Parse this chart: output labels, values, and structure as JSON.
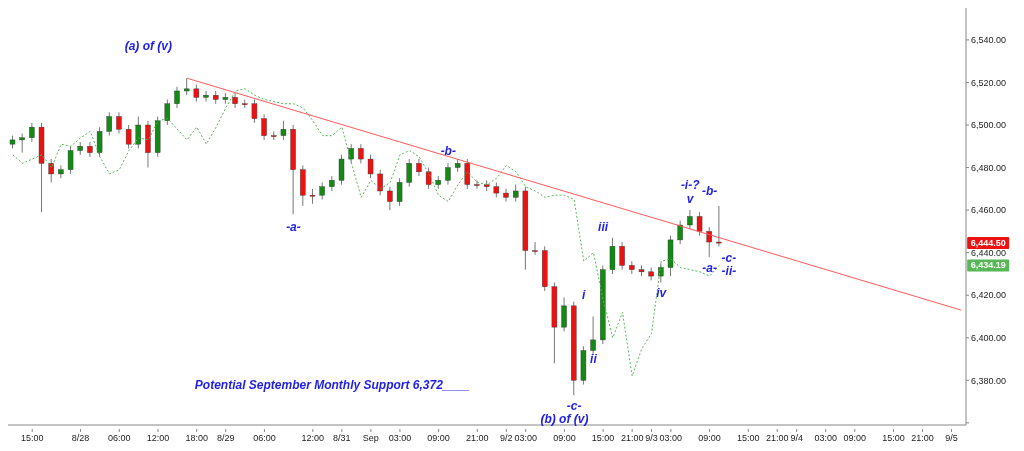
{
  "chart_data": {
    "type": "candlestick",
    "categories": [
      null,
      null,
      "15:00",
      null,
      null,
      null,
      null,
      "8/28",
      null,
      null,
      null,
      "06:00",
      null,
      null,
      null,
      "12:00",
      null,
      null,
      null,
      "18:00",
      null,
      null,
      "8/29",
      null,
      null,
      null,
      "06:00",
      null,
      null,
      null,
      null,
      "12:00",
      null,
      null,
      "8/31",
      null,
      null,
      "Sep",
      null,
      null,
      "03:00",
      null,
      null,
      null,
      "09:00",
      null,
      null,
      null,
      "21:00",
      null,
      null,
      "9/2",
      null,
      "03:00",
      null,
      null,
      null,
      "09:00",
      null,
      null,
      null,
      "15:00",
      null,
      null,
      "21:00",
      null,
      "9/3",
      null,
      "03:00",
      null,
      null,
      null,
      "09:00",
      null,
      null,
      null,
      "15:00",
      null,
      null,
      "21:00",
      null,
      "9/4",
      null,
      null,
      "03:00",
      null,
      null,
      "09:00",
      null,
      null,
      null,
      "15:00",
      null,
      null,
      "21:00",
      null,
      null,
      "9/5",
      null
    ],
    "ohlc": [
      [
        6491,
        6495,
        6489,
        6493
      ],
      [
        6493,
        6496,
        6487,
        6494
      ],
      [
        6494,
        6501,
        6492,
        6499
      ],
      [
        6499,
        6501,
        6459,
        6482
      ],
      [
        6482,
        6484,
        6473,
        6477
      ],
      [
        6477,
        6481,
        6475,
        6479
      ],
      [
        6479,
        6490,
        6477,
        6488
      ],
      [
        6488,
        6492,
        6486,
        6490
      ],
      [
        6490,
        6492,
        6485,
        6487
      ],
      [
        6487,
        6499,
        6485,
        6497
      ],
      [
        6497,
        6506,
        6495,
        6504
      ],
      [
        6504,
        6506,
        6496,
        6498
      ],
      [
        6498,
        6500,
        6489,
        6491
      ],
      [
        6491,
        6504,
        6489,
        6500
      ],
      [
        6500,
        6502,
        6480,
        6487
      ],
      [
        6487,
        6504,
        6485,
        6502
      ],
      [
        6502,
        6512,
        6500,
        6510
      ],
      [
        6510,
        6518,
        6508,
        6516
      ],
      [
        6516,
        6522,
        6514,
        6517
      ],
      [
        6517,
        6519,
        6511,
        6513
      ],
      [
        6513,
        6516,
        6511,
        6514
      ],
      [
        6514,
        6516,
        6510,
        6512
      ],
      [
        6512,
        6515,
        6510,
        6513
      ],
      [
        6513,
        6515,
        6508,
        6510
      ],
      [
        6510,
        6512,
        6508,
        6510
      ],
      [
        6510,
        6512,
        6501,
        6503
      ],
      [
        6503,
        6505,
        6493,
        6495
      ],
      [
        6495,
        6497,
        6493,
        6495
      ],
      [
        6495,
        6502,
        6493,
        6498
      ],
      [
        6498,
        6500,
        6458,
        6479
      ],
      [
        6479,
        6481,
        6462,
        6467
      ],
      [
        6467,
        6470,
        6463,
        6467
      ],
      [
        6467,
        6473,
        6465,
        6471
      ],
      [
        6471,
        6476,
        6469,
        6474
      ],
      [
        6474,
        6486,
        6472,
        6484
      ],
      [
        6484,
        6491,
        6482,
        6489
      ],
      [
        6489,
        6491,
        6482,
        6484
      ],
      [
        6484,
        6486,
        6475,
        6477
      ],
      [
        6477,
        6479,
        6467,
        6469
      ],
      [
        6469,
        6471,
        6460,
        6464
      ],
      [
        6464,
        6475,
        6462,
        6473
      ],
      [
        6473,
        6484,
        6471,
        6482
      ],
      [
        6482,
        6484,
        6476,
        6478
      ],
      [
        6478,
        6480,
        6470,
        6472
      ],
      [
        6472,
        6476,
        6470,
        6474
      ],
      [
        6474,
        6482,
        6472,
        6480
      ],
      [
        6480,
        6484,
        6478,
        6482
      ],
      [
        6482,
        6484,
        6470,
        6472
      ],
      [
        6472,
        6474,
        6470,
        6472
      ],
      [
        6472,
        6474,
        6469,
        6471
      ],
      [
        6471,
        6473,
        6466,
        6468
      ],
      [
        6468,
        6470,
        6464,
        6466
      ],
      [
        6466,
        6472,
        6464,
        6469
      ],
      [
        6469,
        6471,
        6432,
        6441
      ],
      [
        6441,
        6445,
        6439,
        6441
      ],
      [
        6441,
        6443,
        6422,
        6424
      ],
      [
        6424,
        6426,
        6388,
        6405
      ],
      [
        6405,
        6419,
        6403,
        6415
      ],
      [
        6415,
        6417,
        6373,
        6380
      ],
      [
        6380,
        6396,
        6378,
        6394
      ],
      [
        6394,
        6410,
        6392,
        6399
      ],
      [
        6399,
        6434,
        6397,
        6432
      ],
      [
        6432,
        6447,
        6430,
        6443
      ],
      [
        6443,
        6445,
        6432,
        6434
      ],
      [
        6434,
        6436,
        6430,
        6432
      ],
      [
        6432,
        6434,
        6429,
        6431
      ],
      [
        6431,
        6433,
        6427,
        6429
      ],
      [
        6429,
        6435,
        6426,
        6433
      ],
      [
        6433,
        6448,
        6429,
        6446
      ],
      [
        6446,
        6455,
        6444,
        6453
      ],
      [
        6453,
        6460,
        6451,
        6457
      ],
      [
        6457,
        6459,
        6448,
        6450
      ],
      [
        6450,
        6452,
        6438,
        6445
      ],
      [
        6445,
        6462,
        6443,
        6444.5
      ],
      null,
      null,
      null,
      null,
      null,
      null,
      null,
      null,
      null,
      null,
      null,
      null,
      null,
      null,
      null,
      null,
      null,
      null,
      null,
      null,
      null,
      null,
      null,
      null,
      null
    ],
    "colors": [
      "#138a13",
      "#138a13",
      "#138a13",
      "#ee1111",
      "#ee1111",
      "#138a13",
      "#138a13",
      "#138a13",
      "#ee1111",
      "#138a13",
      "#138a13",
      "#ee1111",
      "#ee1111",
      "#138a13",
      "#ee1111",
      "#138a13",
      "#138a13",
      "#138a13",
      "#138a13",
      "#ee1111",
      "#138a13",
      "#ee1111",
      "#138a13",
      "#ee1111",
      "#ee1111",
      "#ee1111",
      "#ee1111",
      "#ee1111",
      "#138a13",
      "#ee1111",
      "#ee1111",
      "#ee1111",
      "#138a13",
      "#138a13",
      "#138a13",
      "#138a13",
      "#ee1111",
      "#ee1111",
      "#ee1111",
      "#ee1111",
      "#138a13",
      "#138a13",
      "#ee1111",
      "#ee1111",
      "#138a13",
      "#138a13",
      "#138a13",
      "#ee1111",
      "#ee1111",
      "#ee1111",
      "#ee1111",
      "#ee1111",
      "#138a13",
      "#ee1111",
      "#ee1111",
      "#ee1111",
      "#ee1111",
      "#138a13",
      "#ee1111",
      "#138a13",
      "#138a13",
      "#138a13",
      "#138a13",
      "#ee1111",
      "#ee1111",
      "#ee1111",
      "#ee1111",
      "#138a13",
      "#138a13",
      "#138a13",
      "#138a13",
      "#ee1111",
      "#ee1111",
      "#ee1111",
      null,
      null,
      null,
      null,
      null,
      null,
      null,
      null,
      null,
      null,
      null,
      null,
      null,
      null,
      null,
      null,
      null,
      null,
      null,
      null,
      null,
      null,
      null,
      null,
      null
    ],
    "series": [
      {
        "type": "line",
        "color": "#55b855",
        "line_style": "dotted",
        "values": [
          6486,
          6482,
          6484,
          6486,
          6480,
          6491,
          6490,
          6494,
          6497,
          6485,
          6477,
          6479,
          6488,
          6494,
          6493,
          6502,
          6503,
          6498,
          6493,
          6499,
          6491,
          6499,
          6508,
          6516,
          6517,
          6514,
          6512,
          6511,
          6510,
          6510,
          6508,
          6502,
          6495,
          6495,
          6499,
          6482,
          6466,
          6474,
          6470,
          6473,
          6486,
          6488,
          6485,
          6477,
          6467,
          6464,
          6472,
          6478,
          6473,
          6472,
          6475,
          6481,
          6478,
          6471,
          6469,
          6466,
          6467,
          6467,
          6465,
          6436,
          6440,
          6418,
          6400,
          6412,
          6382,
          6395,
          6402,
          6436,
          6437,
          6433,
          6432,
          6431,
          6429,
          6434,
          null,
          null,
          null,
          null,
          null,
          null,
          null,
          null,
          null,
          null,
          null,
          null,
          null,
          null,
          null,
          null,
          null,
          null,
          null,
          null,
          null,
          null,
          null,
          null,
          null
        ]
      },
      {
        "type": "line",
        "color": "#ff5a5a",
        "line_style": "solid",
        "values": [
          null,
          null,
          null,
          null,
          null,
          null,
          null,
          null,
          null,
          null,
          null,
          null,
          null,
          null,
          null,
          null,
          null,
          null,
          6522,
          null,
          null,
          null,
          null,
          null,
          null,
          null,
          null,
          null,
          null,
          null,
          null,
          null,
          null,
          null,
          null,
          null,
          null,
          null,
          null,
          null,
          null,
          null,
          null,
          null,
          null,
          null,
          null,
          null,
          null,
          null,
          null,
          null,
          null,
          null,
          null,
          null,
          null,
          null,
          null,
          null,
          null,
          null,
          null,
          null,
          null,
          null,
          null,
          null,
          null,
          null,
          null,
          null,
          null,
          null,
          null,
          null,
          null,
          null,
          null,
          null,
          null,
          null,
          null,
          null,
          null,
          null,
          null,
          null,
          null,
          null,
          null,
          null,
          null,
          null,
          null,
          null,
          null,
          null,
          6413
        ]
      }
    ],
    "ylim": [
      6359,
      6555
    ],
    "yticks": [
      {
        "value": 6360,
        "label": null
      },
      {
        "value": 6380,
        "label": "6,380.00"
      },
      {
        "value": 6400,
        "label": "6,400.00"
      },
      {
        "value": 6420,
        "label": "6,420.00"
      },
      {
        "value": 6440,
        "label": "6,440.00"
      },
      {
        "value": 6460,
        "label": "6,460.00"
      },
      {
        "value": 6480,
        "label": "6,480.00"
      },
      {
        "value": 6500,
        "label": "6,500.00"
      },
      {
        "value": 6520,
        "label": "6,520.00"
      },
      {
        "value": 6540,
        "label": "6,540.00"
      }
    ],
    "annotations": [
      "(a) of (v)",
      "-a-",
      "-b-",
      "iii",
      "i",
      "ii",
      "iv",
      "-i-?",
      "v",
      "-b-",
      "-a-",
      "-c-",
      "-ii-",
      "-c-",
      "(b) of (v)",
      "Potential September Monthly Support 6,372____",
      "6,444.50",
      "6,434.19"
    ]
  }
}
